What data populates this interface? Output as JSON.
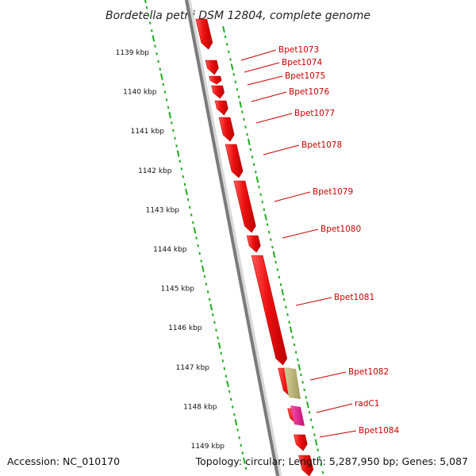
{
  "title": "Bordetella petrii DSM 12804, complete genome",
  "footer": {
    "accession": "Accession: NC_010170",
    "summary": "Topology: circular; Length: 5,287,950 bp; Genes: 5,087"
  },
  "colors": {
    "gene_arrow": "#ee1111",
    "gene_label": "#cc0000",
    "tick_green": "#22aa22",
    "backbone": "#777777",
    "khaki_feature": "#bdb57a",
    "pink_feature": "#e0188a"
  },
  "scale": {
    "unit": "kbp",
    "ticks": [
      "1139 kbp",
      "1140 kbp",
      "1141 kbp",
      "1142 kbp",
      "1143 kbp",
      "1144 kbp",
      "1145 kbp",
      "1146 kbp",
      "1147 kbp",
      "1148 kbp",
      "1149 kbp"
    ]
  },
  "genes": [
    {
      "label": "Bpet1073"
    },
    {
      "label": "Bpet1074"
    },
    {
      "label": "Bpet1075"
    },
    {
      "label": "Bpet1076"
    },
    {
      "label": "Bpet1077"
    },
    {
      "label": "Bpet1078"
    },
    {
      "label": "Bpet1079"
    },
    {
      "label": "Bpet1080"
    },
    {
      "label": "Bpet1081"
    },
    {
      "label": "Bpet1082"
    },
    {
      "label": "radC1"
    },
    {
      "label": "Bpet1084"
    }
  ]
}
